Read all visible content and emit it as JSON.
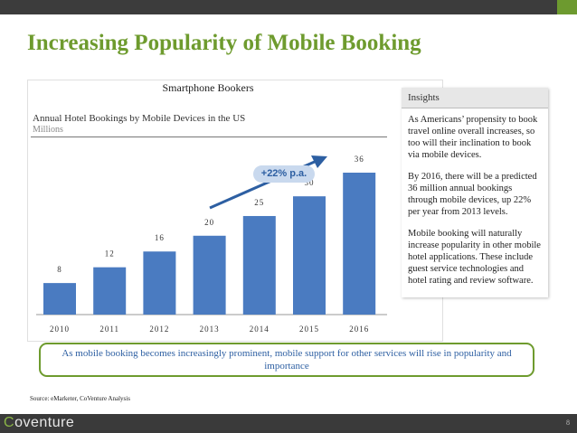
{
  "slide": {
    "title": "Increasing Popularity of Mobile Booking",
    "source": "Source: eMarketer, CoVenture Analysis",
    "page_number": "8"
  },
  "logo": {
    "first": "C",
    "rest": "oventure"
  },
  "chart_header": "Smartphone Bookers",
  "chart_data": {
    "type": "bar",
    "title": "Annual Hotel Bookings by Mobile Devices in the US",
    "unit": "Millions",
    "categories": [
      "2010",
      "2011",
      "2012",
      "2013",
      "2014",
      "2015",
      "2016"
    ],
    "values": [
      8,
      12,
      16,
      20,
      25,
      30,
      36
    ],
    "ylim": [
      0,
      36
    ],
    "bar_color": "#4a7bc1",
    "annotation": "+22% p.a.",
    "xlabel": "",
    "ylabel": ""
  },
  "insights": {
    "heading": "Insights",
    "paragraphs": [
      "As Americans’ propensity to book travel online overall increases, so too will their inclination to book via mobile devices.",
      "By 2016, there will be a predicted 36 million annual bookings through mobile devices, up 22% per year from 2013 levels.",
      "Mobile booking will naturally increase popularity in other mobile hotel applications. These include guest service technologies and hotel rating and review software."
    ]
  },
  "callout": "As mobile booking becomes increasingly prominent, mobile support for other services will rise in popularity and importance",
  "colors": {
    "accent_green": "#6e9b2e",
    "bar_blue": "#4a7bc1",
    "text_blue": "#2d5fa2",
    "dark_bar": "#3a3a3a"
  }
}
